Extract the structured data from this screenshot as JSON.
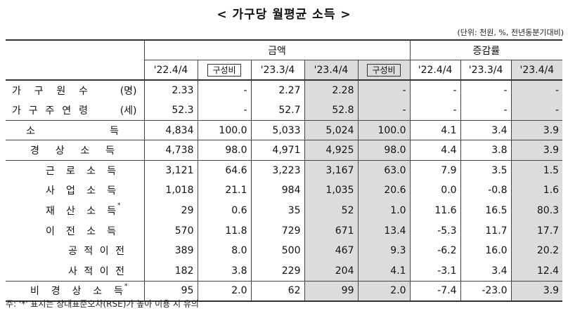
{
  "title": "< 가구당 월평균 소득 >",
  "unit_note": "(단위: 천원, %, 전년동분기대비)",
  "header": {
    "amount_group": "금액",
    "change_group": "증감률",
    "cols": [
      "'22.4/4",
      "구성비",
      "'23.3/4",
      "'23.4/4",
      "구성비",
      "'22.4/4",
      "'23.3/4",
      "'23.4/4"
    ]
  },
  "star_mark": "*",
  "rows": [
    {
      "label": "가구원수",
      "paren": "(명)",
      "values": [
        "2.33",
        "-",
        "2.27",
        "2.28",
        "-",
        "-",
        "-",
        "-"
      ]
    },
    {
      "label": "가구주연령",
      "paren": "(세)",
      "values": [
        "52.3",
        "-",
        "52.7",
        "52.8",
        "-",
        "-",
        "-",
        "-"
      ]
    },
    {
      "label": "소득",
      "values": [
        "4,834",
        "100.0",
        "5,033",
        "5,024",
        "100.0",
        "4.1",
        "3.4",
        "3.9"
      ]
    },
    {
      "label": "경상소득",
      "values": [
        "4,738",
        "98.0",
        "4,971",
        "4,925",
        "98.0",
        "4.4",
        "3.8",
        "3.9"
      ]
    },
    {
      "label": "근로소득",
      "values": [
        "3,121",
        "64.6",
        "3,223",
        "3,167",
        "63.0",
        "7.9",
        "3.5",
        "1.5"
      ]
    },
    {
      "label": "사업소득",
      "values": [
        "1,018",
        "21.1",
        "984",
        "1,035",
        "20.6",
        "0.0",
        "-0.8",
        "1.6"
      ]
    },
    {
      "label": "재산소득",
      "star": true,
      "values": [
        "29",
        "0.6",
        "35",
        "52",
        "1.0",
        "11.6",
        "16.5",
        "80.3"
      ]
    },
    {
      "label": "이전소득",
      "values": [
        "570",
        "11.8",
        "729",
        "671",
        "13.4",
        "-5.3",
        "11.7",
        "17.7"
      ]
    },
    {
      "label": "공적이전",
      "values": [
        "389",
        "8.0",
        "500",
        "467",
        "9.3",
        "-6.2",
        "16.0",
        "20.2"
      ]
    },
    {
      "label": "사적이전",
      "values": [
        "182",
        "3.8",
        "229",
        "204",
        "4.1",
        "-3.1",
        "3.4",
        "12.4"
      ]
    },
    {
      "label": "비경상소득",
      "star": true,
      "values": [
        "95",
        "2.0",
        "62",
        "99",
        "2.0",
        "-7.4",
        "-23.0",
        "3.9"
      ]
    }
  ],
  "footnote": "주: '*' 표시는 상대표준오차(RSE)가 높아 이용 시 유의"
}
